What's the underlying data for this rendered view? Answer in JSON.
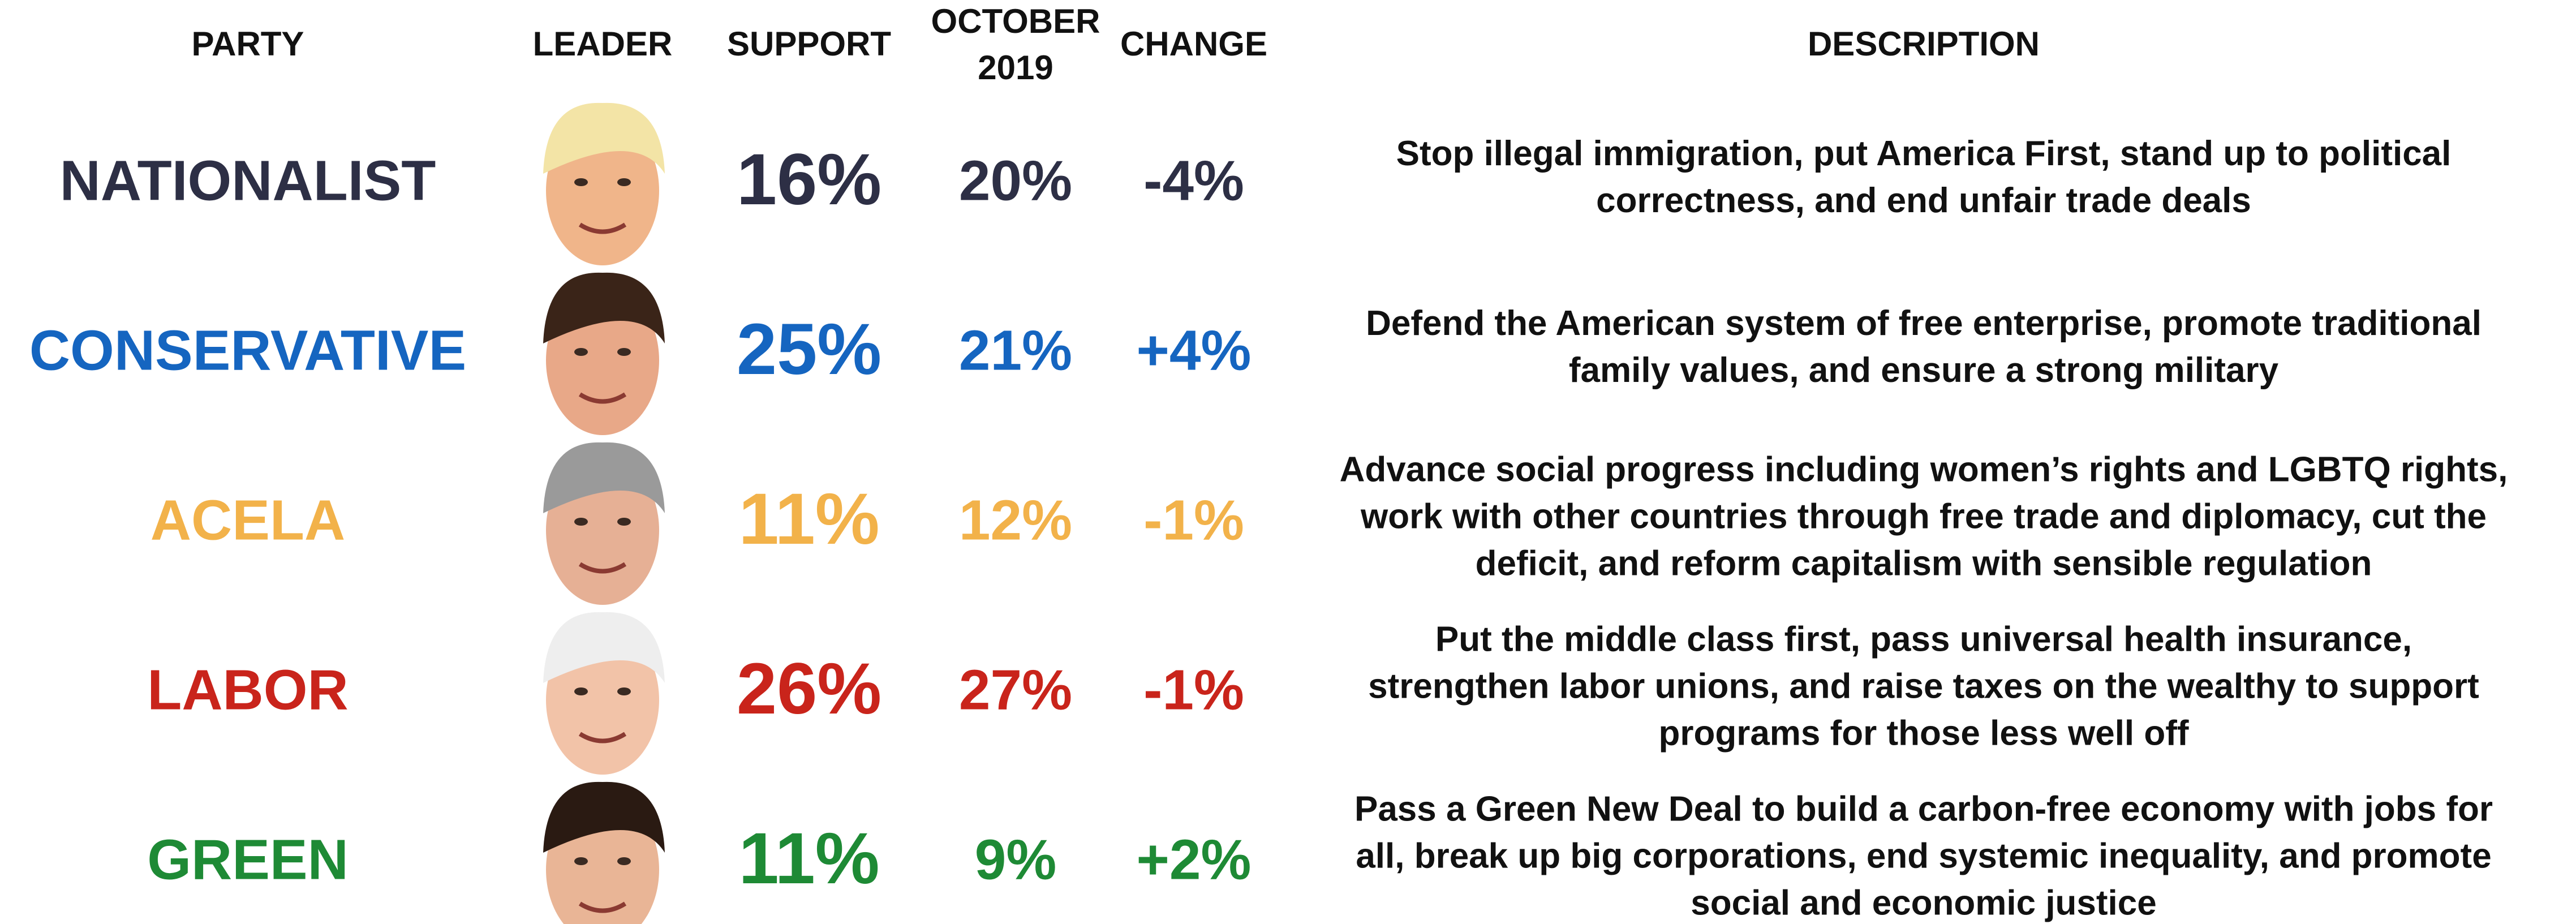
{
  "table": {
    "headers": {
      "party": "PARTY",
      "leader": "LEADER",
      "support": "SUPPORT",
      "october": [
        "OCTOBER",
        "2019"
      ],
      "change": "CHANGE",
      "description": "DESCRIPTION"
    },
    "rows": [
      {
        "party": "NATIONALIST",
        "color": "#2d2f45",
        "support": "16%",
        "october": "20%",
        "change": "-4%",
        "description": [
          "Stop illegal immigration, put America First, stand up to political",
          "correctness, and end unfair trade deals"
        ]
      },
      {
        "party": "CONSERVATIVE",
        "color": "#1565c0",
        "support": "25%",
        "october": "21%",
        "change": "+4%",
        "description": [
          "Defend the American system of free enterprise, promote traditional",
          "family values, and ensure a strong military"
        ]
      },
      {
        "party": "ACELA",
        "color": "#f2b24a",
        "support": "11%",
        "october": "12%",
        "change": "-1%",
        "description": [
          "Advance social progress including women’s rights and LGBTQ rights,",
          "work with other countries through free trade and diplomacy, cut the",
          "deficit, and reform capitalism with sensible regulation"
        ]
      },
      {
        "party": "LABOR",
        "color": "#c9241b",
        "support": "26%",
        "october": "27%",
        "change": "-1%",
        "description": [
          "Put the middle class first, pass universal health insurance,",
          "strengthen labor unions, and raise taxes on the wealthy to support",
          "programs for those less well off"
        ]
      },
      {
        "party": "GREEN",
        "color": "#1e8a35",
        "support": "11%",
        "october": "9%",
        "change": "+2%",
        "description": [
          "Pass a Green New Deal to build a carbon-free economy with jobs for",
          "all, break up big corporations, end systemic inequality, and promote",
          "social and economic justice"
        ]
      }
    ]
  }
}
